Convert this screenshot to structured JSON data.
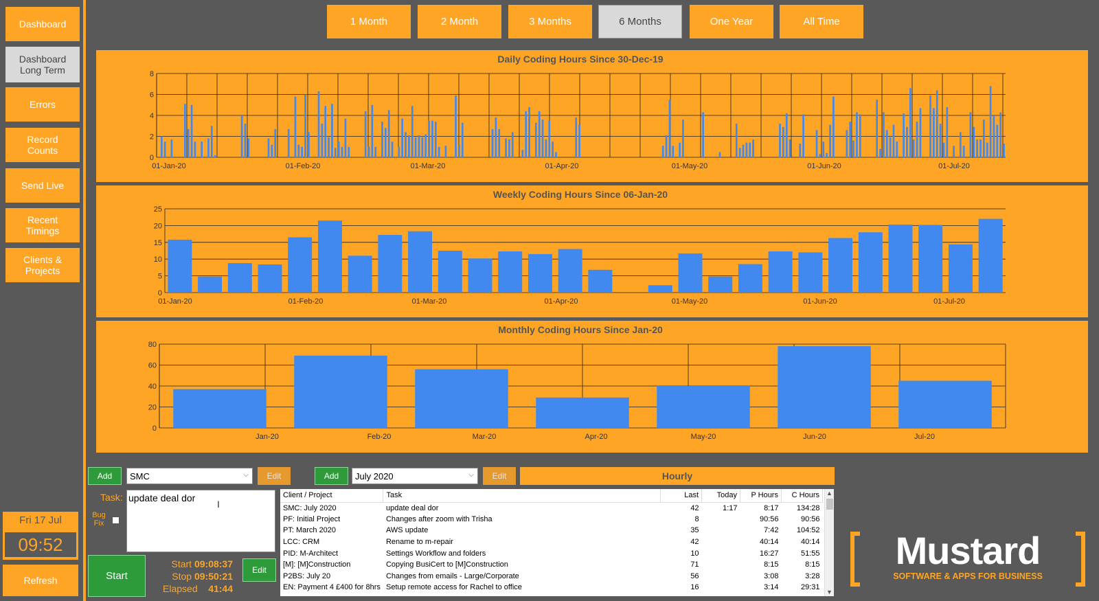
{
  "sidebar": {
    "items": [
      {
        "label": "Dashboard",
        "active": false
      },
      {
        "label": "Dashboard\nLong Term",
        "active": true
      },
      {
        "label": "Errors",
        "active": false
      },
      {
        "label": "Record\nCounts",
        "active": false
      },
      {
        "label": "Send Live",
        "active": false
      },
      {
        "label": "Recent\nTimings",
        "active": false
      },
      {
        "label": "Clients &\nProjects",
        "active": false
      }
    ],
    "date": "Fri 17 Jul",
    "time": "09:52",
    "refresh_label": "Refresh"
  },
  "ranges": [
    {
      "label": "1 Month",
      "active": false
    },
    {
      "label": "2 Month",
      "active": false
    },
    {
      "label": "3 Months",
      "active": false
    },
    {
      "label": "6 Months",
      "active": true
    },
    {
      "label": "One Year",
      "active": false
    },
    {
      "label": "All Time",
      "active": false
    }
  ],
  "chart_data": [
    {
      "type": "bar",
      "title": "Daily Coding Hours Since 30-Dec-19",
      "ylim": [
        0,
        8
      ],
      "yticks": [
        0,
        2,
        4,
        6,
        8
      ],
      "xtick_labels": [
        "01-Jan-20",
        "01-Feb-20",
        "01-Mar-20",
        "01-Apr-20",
        "01-May-20",
        "01-Jun-20",
        "01-Jul-20"
      ],
      "values": [
        0,
        2,
        1.5,
        0,
        1.7,
        0,
        0,
        0,
        5.1,
        2.7,
        5,
        1.5,
        0,
        1.5,
        0,
        1.8,
        3,
        0.2,
        0,
        0,
        0,
        0,
        0,
        0,
        0,
        4,
        3.2,
        1.8,
        0,
        0,
        0,
        0,
        0,
        1.8,
        1.2,
        2.7,
        0,
        0,
        0,
        2.7,
        0,
        5.8,
        1.2,
        1,
        6,
        2.4,
        0,
        0,
        6.3,
        3.2,
        4.9,
        1.9,
        5.1,
        0.9,
        1.5,
        1,
        3.7,
        1,
        0,
        0,
        0,
        0,
        4.4,
        1,
        5,
        1,
        0,
        3.4,
        2.8,
        4.5,
        1.5,
        0,
        1,
        3.7,
        2.4,
        2.1,
        4.9,
        1.9,
        2.1,
        1.9,
        2.2,
        3.5,
        3.5,
        3.4,
        1,
        0,
        1.1,
        0,
        0,
        5.9,
        1.2,
        3.3,
        0,
        0,
        0,
        0,
        0,
        0,
        0,
        0,
        2.7,
        3.8,
        2.7,
        0,
        1.8,
        1.7,
        2.4,
        0,
        0,
        0.7,
        4.4,
        4.8,
        0,
        3.3,
        4.4,
        3.6,
        1.7,
        3.5,
        1.5,
        0.5,
        0,
        0,
        0,
        0,
        0,
        3.8,
        3.1,
        0,
        0,
        0,
        0,
        0,
        0,
        0,
        0,
        0,
        0,
        0,
        0,
        0,
        0,
        0,
        0,
        0,
        0,
        0,
        0,
        0,
        0,
        0,
        0,
        1.1,
        2.1,
        5.5,
        1.1,
        0,
        1.4,
        3.6,
        0,
        0,
        0,
        0,
        0,
        4.3,
        0,
        0,
        0,
        0,
        0.5,
        0,
        0,
        0,
        0,
        3.2,
        0.9,
        1.2,
        1.4,
        1.4,
        1.7,
        0,
        0,
        0,
        0,
        0,
        0,
        0,
        3.2,
        2.9,
        4.2,
        1.7,
        0,
        0,
        1.3,
        4.1,
        0,
        0,
        0,
        2.6,
        0.3,
        1.5,
        0.4,
        3.1,
        5.8,
        0,
        0,
        0,
        2.6,
        3.4,
        1.6,
        4.3,
        4.1,
        0,
        0,
        0,
        0,
        5.5,
        0.8,
        4.3,
        2.6,
        1.9,
        3.1,
        1.5,
        0,
        4.2,
        2.9,
        6.6,
        1.7,
        3.4,
        4.7,
        0,
        0,
        5.9,
        4.7,
        6.4,
        3.2,
        1.4,
        4.8,
        0,
        1.1,
        0,
        2.4,
        1.1,
        0,
        4.3,
        2.9,
        1.7,
        1.7,
        3.6,
        1.4,
        6.8,
        4,
        3.1,
        4.3,
        1.3
      ]
    },
    {
      "type": "bar",
      "title": "Weekly Coding Hours Since 06-Jan-20",
      "ylim": [
        0,
        25
      ],
      "yticks": [
        0,
        5,
        10,
        15,
        20,
        25
      ],
      "xtick_labels": [
        "01-Jan-20",
        "01-Feb-20",
        "01-Mar-20",
        "01-Apr-20",
        "01-May-20",
        "01-Jun-20",
        "01-Jul-20"
      ],
      "values": [
        15.8,
        4.8,
        8.8,
        8.4,
        16.5,
        21.5,
        11,
        17.2,
        18.3,
        12.5,
        10.2,
        12.3,
        11.5,
        13,
        6.8,
        0,
        2.2,
        11.7,
        4.8,
        8.5,
        12.3,
        12,
        16.3,
        18,
        20.3,
        20.2,
        14.4,
        22
      ]
    },
    {
      "type": "bar",
      "title": "Monthly Coding Hours Since Jan-20",
      "ylim": [
        0,
        80
      ],
      "yticks": [
        0,
        20,
        40,
        60,
        80
      ],
      "categories": [
        "Jan-20",
        "Feb-20",
        "Mar-20",
        "Apr-20",
        "May-20",
        "Jun-20",
        "Jul-20"
      ],
      "values": [
        37,
        69,
        56,
        29,
        40,
        78,
        45
      ]
    }
  ],
  "entry": {
    "add_label": "Add",
    "edit_label": "Edit",
    "client_select": "SMC",
    "project_select": "July 2020",
    "mode_label": "Hourly",
    "task_label": "Task:",
    "task_value": "update deal dor",
    "bug_fix_label": "Bug\nFix",
    "start_label": "Start",
    "start_time_label": "Start",
    "start_time": "09:08:37",
    "stop_time_label": "Stop",
    "stop_time": "09:50:21",
    "elapsed_label": "Elapsed",
    "elapsed": "41:44"
  },
  "table": {
    "headers": [
      "Client / Project",
      "Task",
      "Last",
      "Today",
      "P Hours",
      "C Hours"
    ],
    "rows": [
      [
        "SMC: July 2020",
        "update deal dor",
        "42",
        "1:17",
        "8:17",
        "134:28"
      ],
      [
        "PF: Initial Project",
        "Changes after zoom with Trisha",
        "8",
        "",
        "90:56",
        "90:56"
      ],
      [
        "PT: March 2020",
        "AWS update",
        "35",
        "",
        "7:42",
        "104:52"
      ],
      [
        "LCC: CRM",
        "Rename to m-repair",
        "42",
        "",
        "40:14",
        "40:14"
      ],
      [
        "PID: M-Architect",
        "Settings Workflow and folders",
        "10",
        "",
        "16:27",
        "51:55"
      ],
      [
        "[M]: [M]Construction",
        "Copying BusiCert to [M]Construction",
        "71",
        "",
        "8:15",
        "8:15"
      ],
      [
        "P2BS: July 20",
        "Changes from emails - Large/Corporate",
        "56",
        "",
        "3:08",
        "3:28"
      ],
      [
        "EN: Payment 4 £400 for 8hrs",
        "Setup remote access for Rachel to office",
        "16",
        "",
        "3:14",
        "29:31"
      ]
    ]
  },
  "logo": {
    "name": "Mustard",
    "tagline": "SOFTWARE & APPS FOR BUSINESS"
  },
  "colors": {
    "accent": "#FFA526",
    "bar": "#4189EE",
    "background": "#595959",
    "green": "#2E9B3A"
  }
}
